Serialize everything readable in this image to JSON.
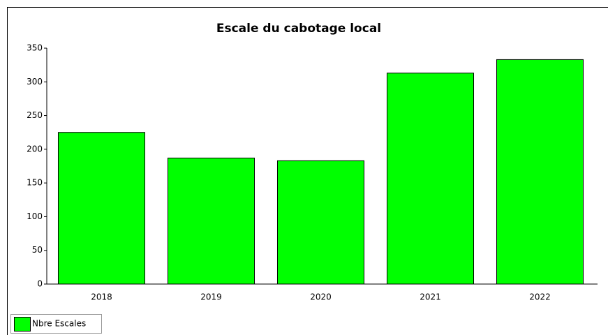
{
  "chart_data": {
    "type": "bar",
    "title": "Escale du cabotage local",
    "categories": [
      "2018",
      "2019",
      "2020",
      "2021",
      "2022"
    ],
    "series": [
      {
        "name": "Nbre Escales",
        "color": "#00ff00",
        "values": [
          225,
          187,
          183,
          313,
          333
        ]
      }
    ],
    "ylim": [
      0,
      350
    ],
    "yticks": [
      0,
      50,
      100,
      150,
      200,
      250,
      300,
      350
    ],
    "grid": false,
    "legend": "bottom-left"
  }
}
